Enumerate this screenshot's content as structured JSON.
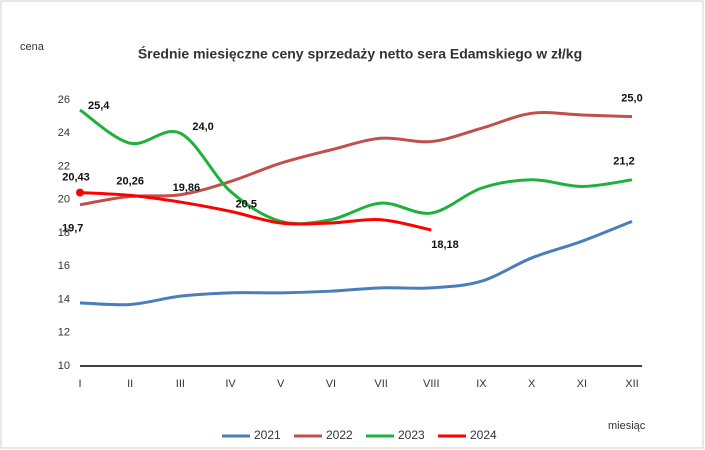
{
  "chart_data": {
    "type": "line",
    "title": "Średnie miesięczne ceny sprzedaży netto sera Edamskiego w zł/kg",
    "y_label": "cena",
    "x_label": "miesiąc",
    "categories": [
      "I",
      "II",
      "III",
      "IV",
      "V",
      "VI",
      "VII",
      "VIII",
      "IX",
      "X",
      "XI",
      "XII"
    ],
    "ylim": [
      10,
      26
    ],
    "yticks": [
      10,
      12,
      14,
      16,
      18,
      20,
      22,
      24,
      26
    ],
    "legend": "bottom",
    "series": [
      {
        "name": "2021",
        "color": "#4a7ebb",
        "values": [
          13.8,
          13.7,
          14.2,
          14.4,
          14.4,
          14.5,
          14.7,
          14.7,
          15.1,
          16.5,
          17.5,
          18.7
        ]
      },
      {
        "name": "2022",
        "color": "#c0504d",
        "values": [
          19.7,
          20.2,
          20.3,
          21.1,
          22.2,
          23.0,
          23.7,
          23.5,
          24.3,
          25.2,
          25.1,
          25.0
        ],
        "value_labels": [
          "19,7",
          null,
          null,
          null,
          null,
          null,
          null,
          null,
          null,
          null,
          null,
          "25,0"
        ]
      },
      {
        "name": "2023",
        "color": "#1fb23a",
        "values": [
          25.4,
          23.4,
          24.0,
          20.5,
          18.7,
          18.8,
          19.8,
          19.2,
          20.7,
          21.2,
          20.8,
          21.2
        ],
        "value_labels": [
          "25,4",
          null,
          "24,0",
          "20,5",
          null,
          null,
          null,
          null,
          null,
          null,
          null,
          "21,2"
        ]
      },
      {
        "name": "2024",
        "color": "#ff0000",
        "values": [
          20.43,
          20.26,
          19.86,
          19.3,
          18.6,
          18.6,
          18.8,
          18.18,
          null,
          null,
          null,
          null
        ],
        "value_labels": [
          "20,43",
          "20,26",
          "19,86",
          null,
          null,
          null,
          null,
          "18,18",
          null,
          null,
          null,
          null
        ]
      }
    ]
  }
}
